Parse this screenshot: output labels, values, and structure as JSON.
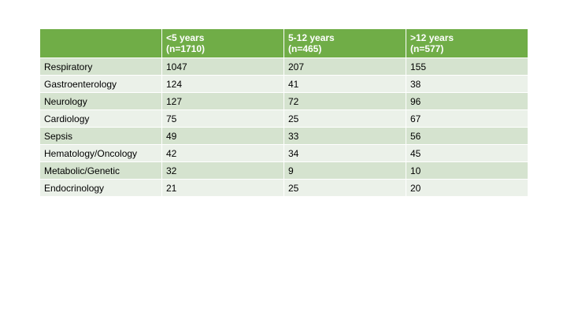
{
  "table": {
    "headers": [
      {
        "line1": "",
        "line2": ""
      },
      {
        "line1": "<5 years",
        "line2": "(n=1710)"
      },
      {
        "line1": "5-12 years",
        "line2": "(n=465)"
      },
      {
        "line1": ">12 years",
        "line2": "(n=577)"
      }
    ],
    "rows": [
      {
        "category": "Respiratory",
        "values": [
          "1047",
          "207",
          "155"
        ]
      },
      {
        "category": "Gastroenterology",
        "values": [
          "124",
          "41",
          "38"
        ]
      },
      {
        "category": "Neurology",
        "values": [
          "127",
          "72",
          "96"
        ]
      },
      {
        "category": "Cardiology",
        "values": [
          "75",
          "25",
          "67"
        ]
      },
      {
        "category": "Sepsis",
        "values": [
          "49",
          "33",
          "56"
        ]
      },
      {
        "category": "Hematology/Oncology",
        "values": [
          "42",
          "34",
          "45"
        ]
      },
      {
        "category": "Metabolic/Genetic",
        "values": [
          "32",
          "9",
          "10"
        ]
      },
      {
        "category": "Endocrinology",
        "values": [
          "21",
          "25",
          "20"
        ]
      }
    ]
  },
  "colors": {
    "header_bg": "#70ad47",
    "row_odd_bg": "#d5e3cf",
    "row_even_bg": "#ebf1e9"
  }
}
